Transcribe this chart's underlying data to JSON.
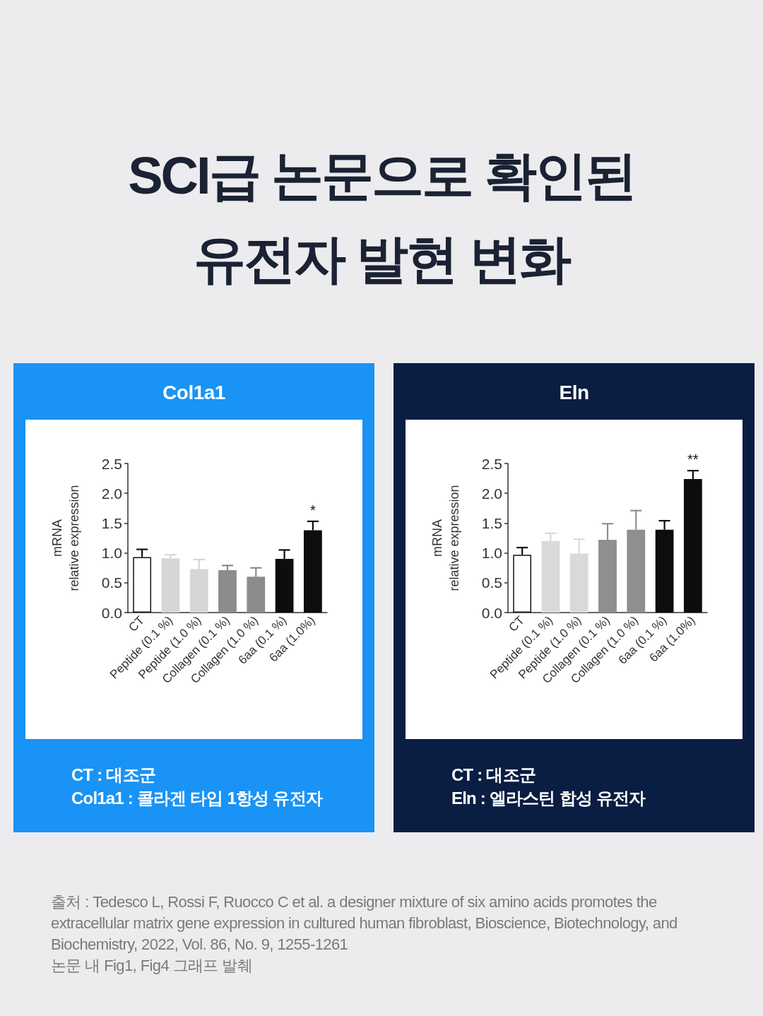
{
  "chart_data": [
    {
      "type": "other",
      "title": "SCI급 논문으로 확인된",
      "subtitle": "유전자 발현 변화"
    },
    {
      "type": "bar",
      "title": "Col1a1",
      "ylabel": "mRNA\nrelative expression",
      "categories": [
        "CT",
        "Peptide (0.1 %)",
        "Peptide (1.0 %)",
        "Collagen (0.1 %)",
        "Collagen (1.0 %)",
        "6aa (0.1 %)",
        "6aa (1.0%)"
      ],
      "values": [
        0.93,
        0.91,
        0.73,
        0.71,
        0.6,
        0.9,
        1.38
      ],
      "errors": [
        [
          0.93,
          1.06
        ],
        [
          0.91,
          0.97
        ],
        [
          0.73,
          0.89
        ],
        [
          0.71,
          0.79
        ],
        [
          0.6,
          0.75
        ],
        [
          0.9,
          1.05
        ],
        [
          1.38,
          1.53
        ]
      ],
      "colors": [
        "#ffffff",
        "#d6d6d6",
        "#d6d6d6",
        "#8c8c8c",
        "#8c8c8c",
        "#0d0d0d",
        "#0d0d0d"
      ],
      "ylim": [
        0,
        2.5
      ],
      "yticks": [
        {
          "value": 0,
          "label": "0.0"
        },
        0.5,
        {
          "value": 1,
          "label": "1.0"
        },
        1.5,
        {
          "value": 2,
          "label": "2.0"
        },
        2.5
      ],
      "annotations": [
        {
          "text": "*",
          "x": "6aa (1.0%)",
          "y": 1.53
        },
        "CT : 대조군",
        "Col1a1 : 콜라겐 타입 1항성 유전자"
      ]
    },
    {
      "type": "bar",
      "title": "Eln",
      "ylabel": "mRNA\nrelative expression",
      "categories": [
        "CT",
        "Peptide (0.1 %)",
        "Peptide (1.0 %)",
        "Collagen (0.1 %)",
        "Collagen (1.0 %)",
        "6aa (0.1 %)",
        "6aa (1.0%)"
      ],
      "values": [
        0.97,
        1.2,
        0.99,
        1.22,
        1.39,
        1.39,
        2.24
      ],
      "errors": [
        [
          0.97,
          1.09
        ],
        [
          1.2,
          1.33
        ],
        [
          0.99,
          1.23
        ],
        [
          1.22,
          1.49
        ],
        [
          1.39,
          1.71
        ],
        [
          1.39,
          1.54
        ],
        [
          2.24,
          2.38
        ]
      ],
      "colors": [
        "#ffffff",
        "#d9d9d9",
        "#d9d9d9",
        "#8f8f8f",
        "#8f8f8f",
        "#0d0d0d",
        "#0d0d0d"
      ],
      "ylim": [
        0,
        2.5
      ],
      "yticks": [
        {
          "value": 0,
          "label": "0.0"
        },
        0.5,
        {
          "value": 1,
          "label": "1.0"
        },
        1.5,
        {
          "value": 2,
          "label": "2.0"
        },
        2.5
      ],
      "annotations": [
        {
          "text": "**",
          "x": "6aa (1.0%)",
          "y": 2.38
        },
        "CT : 대조군",
        "Eln : 엘라스틴 합성 유전자"
      ]
    },
    {
      "type": "other",
      "annotations": [
        "출처 : Tedesco L, Rossi F, Ruocco C et al. a designer mixture of six amino acids promotes the extracellular matrix gene expression in cultured human fibroblast, Bioscience, Biotechnology, and Biochemistry, 2022, Vol. 86, No. 9, 1255-1261",
        "논문 내 Fig1, Fig4 그래프 발췌"
      ]
    }
  ]
}
